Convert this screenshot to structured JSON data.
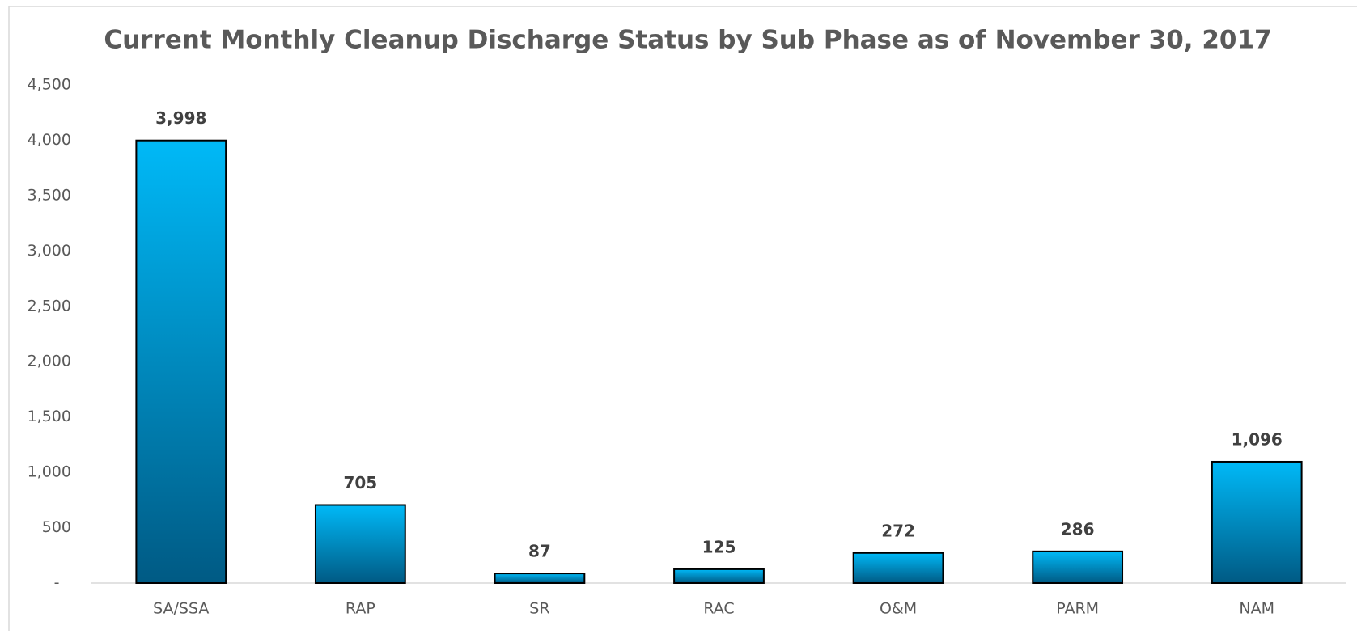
{
  "chart_data": {
    "type": "bar",
    "title": "Current Monthly Cleanup Discharge Status by Sub Phase as of November 30, 2017",
    "categories": [
      "SA/SSA",
      "RAP",
      "SR",
      "RAC",
      "O&M",
      "PARM",
      "NAM"
    ],
    "values": [
      3998,
      705,
      87,
      125,
      272,
      286,
      1096
    ],
    "value_labels": [
      "3,998",
      "705",
      "87",
      "125",
      "272",
      "286",
      "1,096"
    ],
    "color": [
      "#00b9f7",
      "#005a84"
    ],
    "ylim": [
      0,
      4500
    ],
    "yticks": [
      {
        "value": 0,
        "label": "-"
      },
      500,
      {
        "value": 1000,
        "label": "1,000"
      },
      {
        "value": 1500,
        "label": "1,500"
      },
      {
        "value": 2000,
        "label": "2,000"
      },
      {
        "value": 2500,
        "label": "2,500"
      },
      {
        "value": 3000,
        "label": "3,000"
      },
      {
        "value": 3500,
        "label": "3,500"
      },
      {
        "value": 4000,
        "label": "4,000"
      },
      {
        "value": 4500,
        "label": "4,500"
      }
    ],
    "grid": false
  }
}
